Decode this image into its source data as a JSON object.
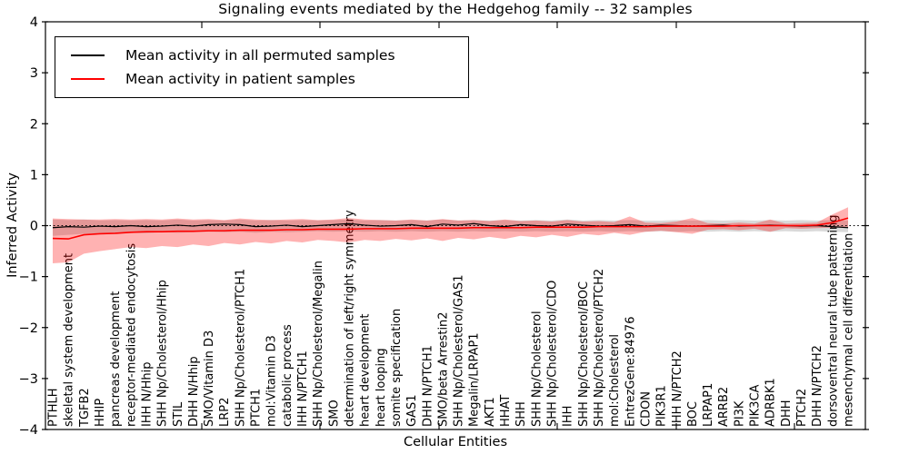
{
  "chart_data": {
    "type": "line",
    "title": "Signaling events mediated by the Hedgehog family -- 32 samples",
    "xlabel": "Cellular Entities",
    "ylabel": "Inferred Activity",
    "ylim": [
      -4,
      4
    ],
    "yticks": [
      4,
      3,
      2,
      1,
      0,
      -1,
      -2,
      -3,
      -4
    ],
    "grid": false,
    "zero_line": true,
    "legend_position": "upper left",
    "frame_color": "#000000",
    "categories": [
      "PTHLH",
      "skeletal system development",
      "TGFB2",
      "HHIP",
      "pancreas development",
      "receptor-mediated endocytosis",
      "IHH N/Hhip",
      "SHH Np/Cholesterol/Hhip",
      "STIL",
      "DHH N/Hhip",
      "SMO/Vitamin D3",
      "LRP2",
      "SHH Np/Cholesterol/PTCH1",
      "PTCH1",
      "mol:Vitamin D3",
      "catabolic process",
      "IHH N/PTCH1",
      "SHH Np/Cholesterol/Megalin",
      "SMO",
      "determination of left/right symmetry",
      "heart development",
      "heart looping",
      "somite specification",
      "GAS1",
      "DHH N/PTCH1",
      "SMO/beta Arrestin2",
      "SHH Np/Cholesterol/GAS1",
      "Megalin/LRPAP1",
      "AKT1",
      "HHAT",
      "SHH",
      "SHH Np/Cholesterol",
      "SHH Np/Cholesterol/CDO",
      "IHH",
      "SHH Np/Cholesterol/BOC",
      "SHH Np/Cholesterol/PTCH2",
      "mol:Cholesterol",
      "EntrezGene:84976",
      "CDON",
      "PIK3R1",
      "IHH N/PTCH2",
      "BOC",
      "LRPAP1",
      "ARRB2",
      "PI3K",
      "PIK3CA",
      "ADRBK1",
      "DHH",
      "PTCH2",
      "DHH N/PTCH2",
      "dorsoventral neural tube patterning",
      "mesenchymal cell differentiation"
    ],
    "series": [
      {
        "name": "Mean activity in all permuted samples",
        "color": "#000000",
        "band_color": "rgba(0,0,0,0.15)",
        "values": [
          -0.04,
          -0.02,
          -0.03,
          -0.01,
          -0.02,
          0.0,
          -0.02,
          -0.01,
          0.01,
          -0.01,
          0.02,
          0.03,
          0.02,
          -0.02,
          -0.01,
          0.01,
          -0.02,
          0.0,
          0.02,
          0.04,
          0.01,
          -0.01,
          0.0,
          0.02,
          -0.02,
          0.03,
          0.01,
          0.04,
          0.0,
          -0.02,
          0.02,
          0.0,
          -0.01,
          0.03,
          0.01,
          -0.01,
          0.0,
          0.02,
          -0.01,
          0.01,
          0.0,
          -0.01,
          0.0,
          0.01,
          -0.01,
          0.0,
          0.01,
          0.0,
          -0.01,
          0.0,
          -0.02,
          -0.04
        ],
        "band_upper": [
          0.12,
          0.11,
          0.12,
          0.1,
          0.11,
          0.1,
          0.11,
          0.1,
          0.12,
          0.1,
          0.11,
          0.1,
          0.12,
          0.1,
          0.11,
          0.1,
          0.11,
          0.1,
          0.11,
          0.12,
          0.1,
          0.11,
          0.1,
          0.11,
          0.1,
          0.12,
          0.1,
          0.11,
          0.1,
          0.11,
          0.1,
          0.11,
          0.1,
          0.12,
          0.1,
          0.11,
          0.1,
          0.11,
          0.1,
          0.1,
          0.11,
          0.1,
          0.11,
          0.1,
          0.11,
          0.1,
          0.11,
          0.1,
          0.11,
          0.1,
          0.11,
          0.1
        ],
        "band_lower": [
          -0.2,
          -0.18,
          -0.16,
          -0.15,
          -0.16,
          -0.14,
          -0.15,
          -0.13,
          -0.14,
          -0.13,
          -0.12,
          -0.13,
          -0.12,
          -0.14,
          -0.12,
          -0.13,
          -0.12,
          -0.11,
          -0.12,
          -0.11,
          -0.12,
          -0.11,
          -0.12,
          -0.11,
          -0.12,
          -0.11,
          -0.12,
          -0.11,
          -0.12,
          -0.11,
          -0.12,
          -0.11,
          -0.12,
          -0.11,
          -0.12,
          -0.11,
          -0.12,
          -0.11,
          -0.12,
          -0.11,
          -0.12,
          -0.11,
          -0.12,
          -0.11,
          -0.12,
          -0.11,
          -0.12,
          -0.11,
          -0.12,
          -0.11,
          -0.12,
          -0.13
        ]
      },
      {
        "name": "Mean activity in patient samples",
        "color": "#ff0000",
        "band_color": "rgba(255,0,0,0.30)",
        "values": [
          -0.25,
          -0.26,
          -0.18,
          -0.16,
          -0.15,
          -0.13,
          -0.12,
          -0.12,
          -0.11,
          -0.11,
          -0.1,
          -0.1,
          -0.09,
          -0.09,
          -0.09,
          -0.08,
          -0.08,
          -0.07,
          -0.07,
          -0.07,
          -0.06,
          -0.06,
          -0.06,
          -0.05,
          -0.05,
          -0.05,
          -0.05,
          -0.04,
          -0.04,
          -0.04,
          -0.04,
          -0.03,
          -0.03,
          -0.03,
          -0.03,
          -0.02,
          -0.02,
          -0.02,
          -0.02,
          -0.01,
          -0.01,
          -0.01,
          -0.01,
          -0.01,
          0.0,
          0.0,
          0.0,
          0.0,
          0.0,
          0.01,
          0.06,
          0.15
        ],
        "band_upper": [
          0.14,
          0.13,
          0.12,
          0.12,
          0.13,
          0.12,
          0.13,
          0.12,
          0.14,
          0.12,
          0.13,
          0.11,
          0.14,
          0.12,
          0.11,
          0.12,
          0.13,
          0.11,
          0.12,
          0.15,
          0.12,
          0.11,
          0.1,
          0.12,
          0.1,
          0.13,
          0.1,
          0.11,
          0.09,
          0.12,
          0.09,
          0.1,
          0.08,
          0.11,
          0.08,
          0.09,
          0.07,
          0.18,
          0.06,
          0.05,
          0.08,
          0.15,
          0.05,
          0.04,
          0.06,
          0.04,
          0.12,
          0.04,
          0.05,
          0.06,
          0.22,
          0.36
        ],
        "band_lower": [
          -0.74,
          -0.72,
          -0.55,
          -0.5,
          -0.46,
          -0.42,
          -0.44,
          -0.4,
          -0.42,
          -0.37,
          -0.4,
          -0.34,
          -0.37,
          -0.32,
          -0.35,
          -0.3,
          -0.33,
          -0.28,
          -0.3,
          -0.33,
          -0.28,
          -0.3,
          -0.26,
          -0.29,
          -0.25,
          -0.3,
          -0.24,
          -0.27,
          -0.22,
          -0.26,
          -0.2,
          -0.23,
          -0.18,
          -0.22,
          -0.16,
          -0.19,
          -0.14,
          -0.18,
          -0.12,
          -0.1,
          -0.13,
          -0.16,
          -0.08,
          -0.07,
          -0.09,
          -0.06,
          -0.12,
          -0.05,
          -0.06,
          -0.05,
          -0.04,
          -0.03
        ]
      }
    ]
  }
}
